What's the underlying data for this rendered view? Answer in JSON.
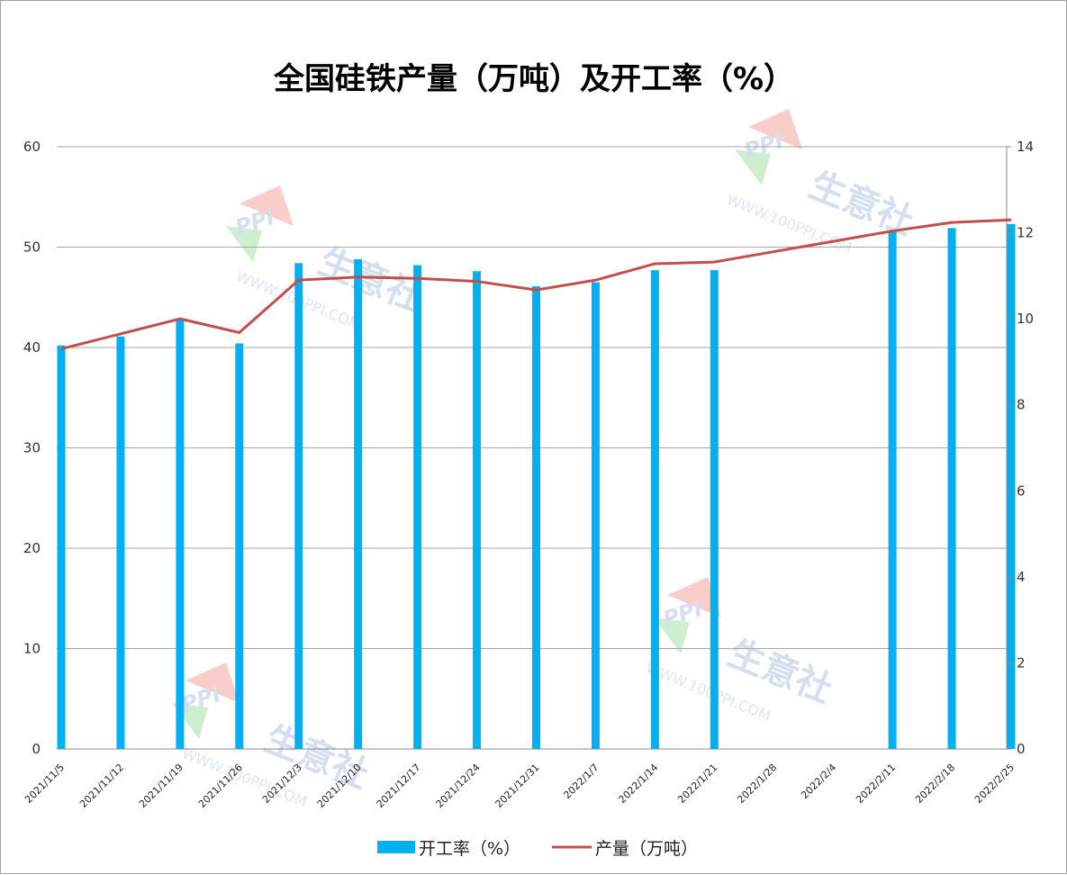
{
  "chart_data": {
    "type": "bar+line",
    "title": "全国硅铁产量（万吨）及开工率（%）",
    "categories": [
      "2021/11/5",
      "2021/11/12",
      "2021/11/19",
      "2021/11/26",
      "2021/12/3",
      "2021/12/10",
      "2021/12/17",
      "2021/12/24",
      "2021/12/31",
      "2022/1/7",
      "2022/1/14",
      "2022/1/21",
      "2022/1/28",
      "2022/2/4",
      "2022/2/11",
      "2022/2/18",
      "2022/2/25"
    ],
    "series": [
      {
        "name": "开工率（%）",
        "type": "bar",
        "axis": "left",
        "color": "#00b0f0",
        "values": [
          40.2,
          41.1,
          42.8,
          40.4,
          48.4,
          48.8,
          48.2,
          47.6,
          46.1,
          46.5,
          47.7,
          47.7,
          null,
          null,
          51.6,
          51.9,
          52.3
        ]
      },
      {
        "name": "产量（万吨）",
        "type": "line",
        "axis": "right",
        "color": "#c0504d",
        "points": [
          [
            0,
            9.3
          ],
          [
            1,
            9.65
          ],
          [
            2,
            10.0
          ],
          [
            3,
            9.68
          ],
          [
            4,
            10.9
          ],
          [
            5,
            10.97
          ],
          [
            6,
            10.94
          ],
          [
            7,
            10.87
          ],
          [
            8,
            10.67
          ],
          [
            9,
            10.9
          ],
          [
            10,
            11.28
          ],
          [
            11,
            11.32
          ],
          [
            14,
            12.04
          ],
          [
            15,
            12.24
          ],
          [
            16,
            12.3
          ]
        ]
      }
    ],
    "y_left": {
      "min": 0,
      "max": 60,
      "ticks": [
        0,
        10,
        20,
        30,
        40,
        50,
        60
      ]
    },
    "y_right": {
      "min": 0,
      "max": 14,
      "ticks": [
        0,
        2,
        4,
        6,
        8,
        10,
        12,
        14
      ]
    },
    "grid": true,
    "legend_position": "bottom"
  },
  "watermark": {
    "brand": "生意社",
    "logo": "PPI",
    "url": "WWW.100PPI.COM"
  }
}
